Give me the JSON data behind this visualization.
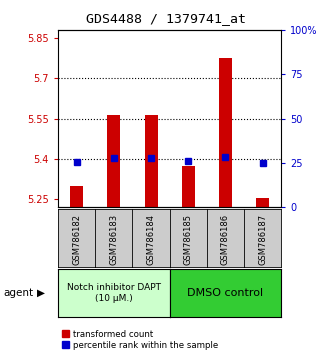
{
  "title": "GDS4488 / 1379741_at",
  "samples": [
    "GSM786182",
    "GSM786183",
    "GSM786184",
    "GSM786185",
    "GSM786186",
    "GSM786187"
  ],
  "red_values": [
    5.3,
    5.565,
    5.562,
    5.375,
    5.775,
    5.255
  ],
  "blue_values": [
    5.388,
    5.403,
    5.402,
    5.39,
    5.406,
    5.385
  ],
  "ylim_left": [
    5.22,
    5.88
  ],
  "ylim_right": [
    0,
    100
  ],
  "yticks_left": [
    5.25,
    5.4,
    5.55,
    5.7,
    5.85
  ],
  "yticks_right": [
    0,
    25,
    50,
    75,
    100
  ],
  "ytick_labels_left": [
    "5.25",
    "5.4",
    "5.55",
    "5.7",
    "5.85"
  ],
  "ytick_labels_right": [
    "0",
    "25",
    "50",
    "75",
    "100%"
  ],
  "hlines": [
    5.4,
    5.55,
    5.7
  ],
  "bar_bottom": 5.22,
  "group1_label": "Notch inhibitor DAPT\n(10 μM.)",
  "group2_label": "DMSO control",
  "agent_label": "agent",
  "legend1": "transformed count",
  "legend2": "percentile rank within the sample",
  "red_color": "#cc0000",
  "blue_color": "#0000cc",
  "group1_bg": "#ccffcc",
  "group2_bg": "#33cc33",
  "sample_bg": "#cccccc",
  "bar_width": 0.35,
  "blue_marker_size": 4
}
